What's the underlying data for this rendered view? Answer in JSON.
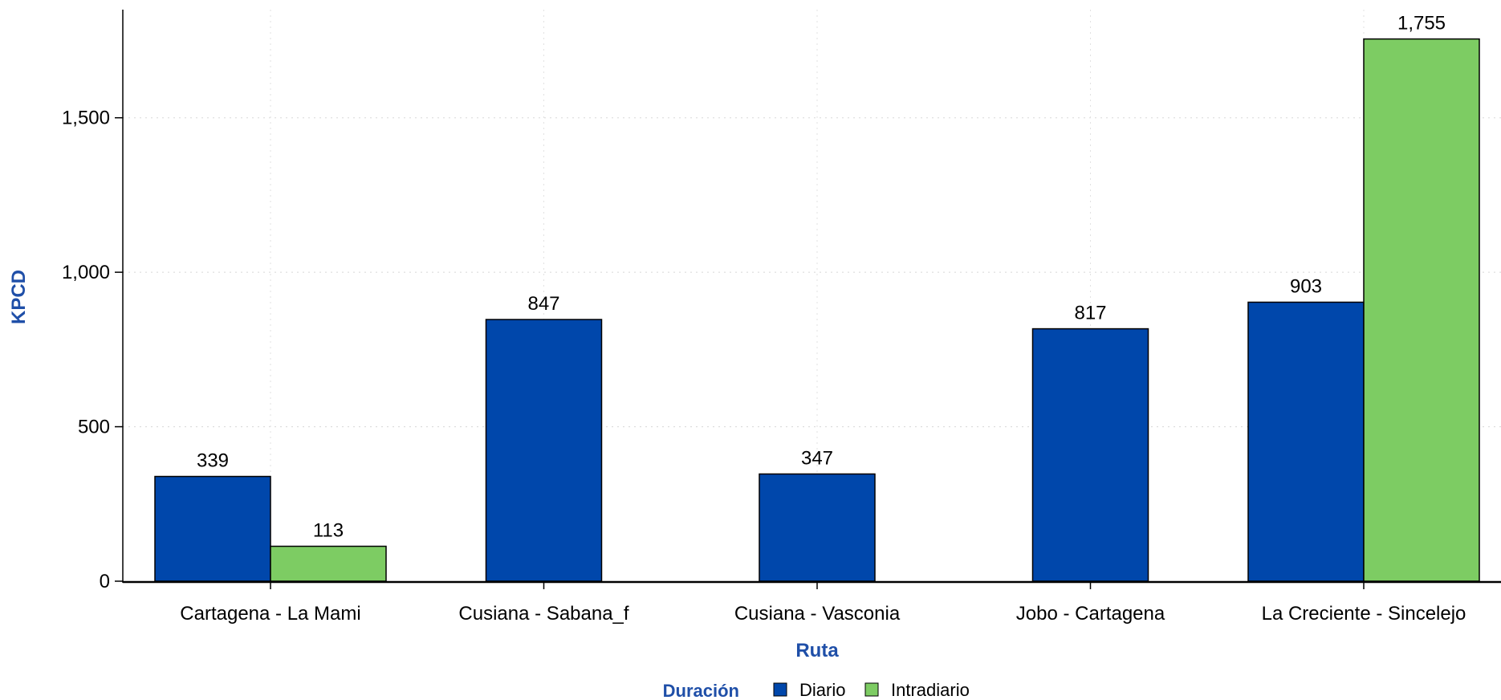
{
  "chart_data": {
    "type": "bar",
    "title": "",
    "xlabel": "Ruta",
    "ylabel": "KPCD",
    "ylim": [
      0,
      1850
    ],
    "yticks": [
      0,
      500,
      1000,
      1500
    ],
    "ytick_labels": [
      "0",
      "500",
      "1,000",
      "1,500"
    ],
    "grid": true,
    "legend_position": "bottom",
    "legend_title": "Duración",
    "categories": [
      "Cartagena - La Mami",
      "Cusiana - Sabana_f",
      "Cusiana - Vasconia",
      "Jobo - Cartagena",
      "La Creciente - Sincelejo"
    ],
    "series": [
      {
        "name": "Diario",
        "color": "#0047AB",
        "values": [
          339,
          847,
          347,
          817,
          903
        ],
        "labels": [
          "339",
          "847",
          "347",
          "817",
          "903"
        ]
      },
      {
        "name": "Intradiario",
        "color": "#7DCC63",
        "values": [
          113,
          null,
          null,
          null,
          1755
        ],
        "labels": [
          "113",
          "",
          "",
          "",
          "1,755"
        ]
      }
    ],
    "title_color": "#1F4FA8"
  }
}
